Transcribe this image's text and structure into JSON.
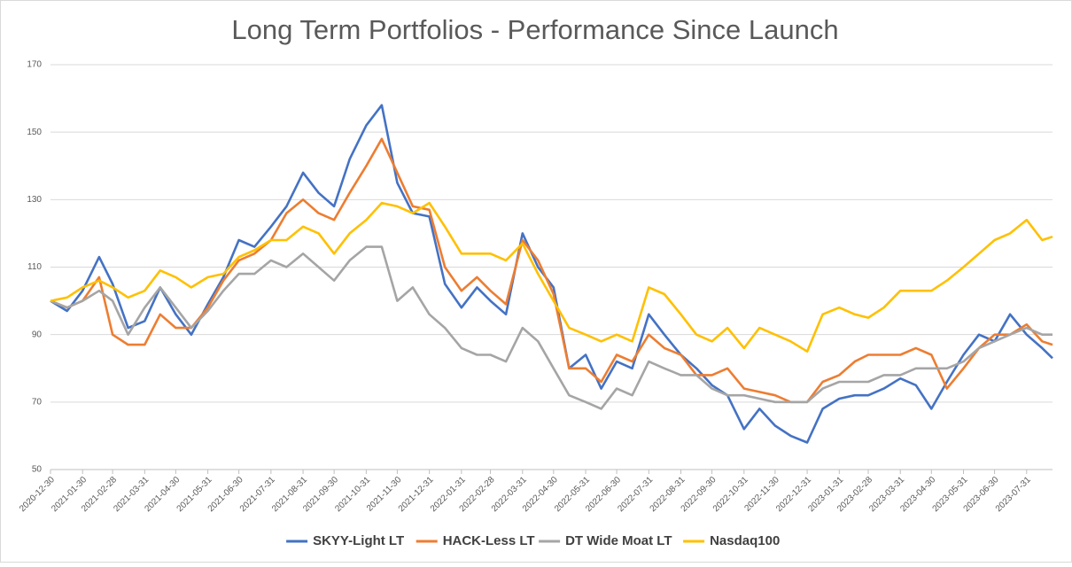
{
  "chart_data": {
    "type": "line",
    "title": "Long Term Portfolios - Performance Since Launch",
    "x": [
      "2020-12-30",
      "2021-01-15",
      "2021-01-30",
      "2021-02-15",
      "2021-02-28",
      "2021-03-15",
      "2021-03-31",
      "2021-04-15",
      "2021-04-30",
      "2021-05-15",
      "2021-05-31",
      "2021-06-15",
      "2021-06-30",
      "2021-07-15",
      "2021-07-31",
      "2021-08-15",
      "2021-08-31",
      "2021-09-15",
      "2021-09-30",
      "2021-10-15",
      "2021-10-31",
      "2021-11-15",
      "2021-11-30",
      "2021-12-15",
      "2021-12-31",
      "2022-01-15",
      "2022-01-31",
      "2022-02-15",
      "2022-02-28",
      "2022-03-15",
      "2022-03-31",
      "2022-04-15",
      "2022-04-30",
      "2022-05-15",
      "2022-05-31",
      "2022-06-15",
      "2022-06-30",
      "2022-07-15",
      "2022-07-31",
      "2022-08-15",
      "2022-08-31",
      "2022-09-15",
      "2022-09-30",
      "2022-10-15",
      "2022-10-31",
      "2022-11-15",
      "2022-11-30",
      "2022-12-15",
      "2022-12-31",
      "2023-01-15",
      "2023-01-31",
      "2023-02-15",
      "2023-02-28",
      "2023-03-15",
      "2023-03-31",
      "2023-04-15",
      "2023-04-30",
      "2023-05-15",
      "2023-05-31",
      "2023-06-15",
      "2023-06-30",
      "2023-07-15",
      "2023-07-31",
      "2023-08-15",
      "2023-08-25"
    ],
    "series": [
      {
        "name": "SKYY-Light LT",
        "color": "#4472c4",
        "values": [
          100,
          97,
          103,
          113,
          105,
          92,
          94,
          104,
          96,
          90,
          99,
          107,
          118,
          116,
          122,
          128,
          138,
          132,
          128,
          142,
          152,
          158,
          135,
          126,
          125,
          105,
          98,
          104,
          100,
          96,
          120,
          110,
          104,
          80,
          84,
          74,
          82,
          80,
          96,
          90,
          84,
          80,
          75,
          72,
          62,
          68,
          63,
          60,
          58,
          68,
          71,
          72,
          72,
          74,
          77,
          75,
          68,
          76,
          84,
          90,
          88,
          96,
          90,
          86,
          83
        ]
      },
      {
        "name": "HACK-Less LT",
        "color": "#ed7d31",
        "values": [
          100,
          98,
          100,
          107,
          90,
          87,
          87,
          96,
          92,
          92,
          98,
          106,
          112,
          114,
          118,
          126,
          130,
          126,
          124,
          132,
          140,
          148,
          138,
          128,
          127,
          110,
          103,
          107,
          103,
          99,
          118,
          112,
          102,
          80,
          80,
          76,
          84,
          82,
          90,
          86,
          84,
          78,
          78,
          80,
          74,
          73,
          72,
          70,
          70,
          76,
          78,
          82,
          84,
          84,
          84,
          86,
          84,
          74,
          80,
          86,
          90,
          90,
          93,
          88,
          87
        ]
      },
      {
        "name": "DT Wide Moat LT",
        "color": "#a5a5a5",
        "values": [
          100,
          98,
          100,
          103,
          100,
          90,
          98,
          104,
          98,
          92,
          97,
          103,
          108,
          108,
          112,
          110,
          114,
          110,
          106,
          112,
          116,
          116,
          100,
          104,
          96,
          92,
          86,
          84,
          84,
          82,
          92,
          88,
          80,
          72,
          70,
          68,
          74,
          72,
          82,
          80,
          78,
          78,
          74,
          72,
          72,
          71,
          70,
          70,
          70,
          74,
          76,
          76,
          76,
          78,
          78,
          80,
          80,
          80,
          82,
          86,
          88,
          90,
          92,
          90,
          90
        ]
      },
      {
        "name": "Nasdaq100",
        "color": "#ffc000",
        "values": [
          100,
          101,
          104,
          106,
          104,
          101,
          103,
          109,
          107,
          104,
          107,
          108,
          113,
          115,
          118,
          118,
          122,
          120,
          114,
          120,
          124,
          129,
          128,
          126,
          129,
          122,
          114,
          114,
          114,
          112,
          117,
          108,
          100,
          92,
          90,
          88,
          90,
          88,
          104,
          102,
          96,
          90,
          88,
          92,
          86,
          92,
          90,
          88,
          85,
          96,
          98,
          96,
          95,
          98,
          103,
          103,
          103,
          106,
          110,
          114,
          118,
          120,
          124,
          118,
          119
        ]
      }
    ],
    "xlim": [
      "2020-12-30",
      "2023-08-25"
    ],
    "xticks": [
      "2020-12-30",
      "2021-01-30",
      "2021-02-28",
      "2021-03-31",
      "2021-04-30",
      "2021-05-31",
      "2021-06-30",
      "2021-07-31",
      "2021-08-31",
      "2021-09-30",
      "2021-10-31",
      "2021-11-30",
      "2021-12-31",
      "2022-01-31",
      "2022-02-28",
      "2022-03-31",
      "2022-04-30",
      "2022-05-31",
      "2022-06-30",
      "2022-07-31",
      "2022-08-31",
      "2022-09-30",
      "2022-10-31",
      "2022-11-30",
      "2022-12-31",
      "2023-01-31",
      "2023-02-28",
      "2023-03-31",
      "2023-04-30",
      "2023-05-31",
      "2023-06-30",
      "2023-07-31"
    ],
    "ylim": [
      50,
      170
    ],
    "yticks": [
      50,
      70,
      90,
      110,
      130,
      150,
      170
    ],
    "grid": true,
    "legend": "bottom"
  }
}
